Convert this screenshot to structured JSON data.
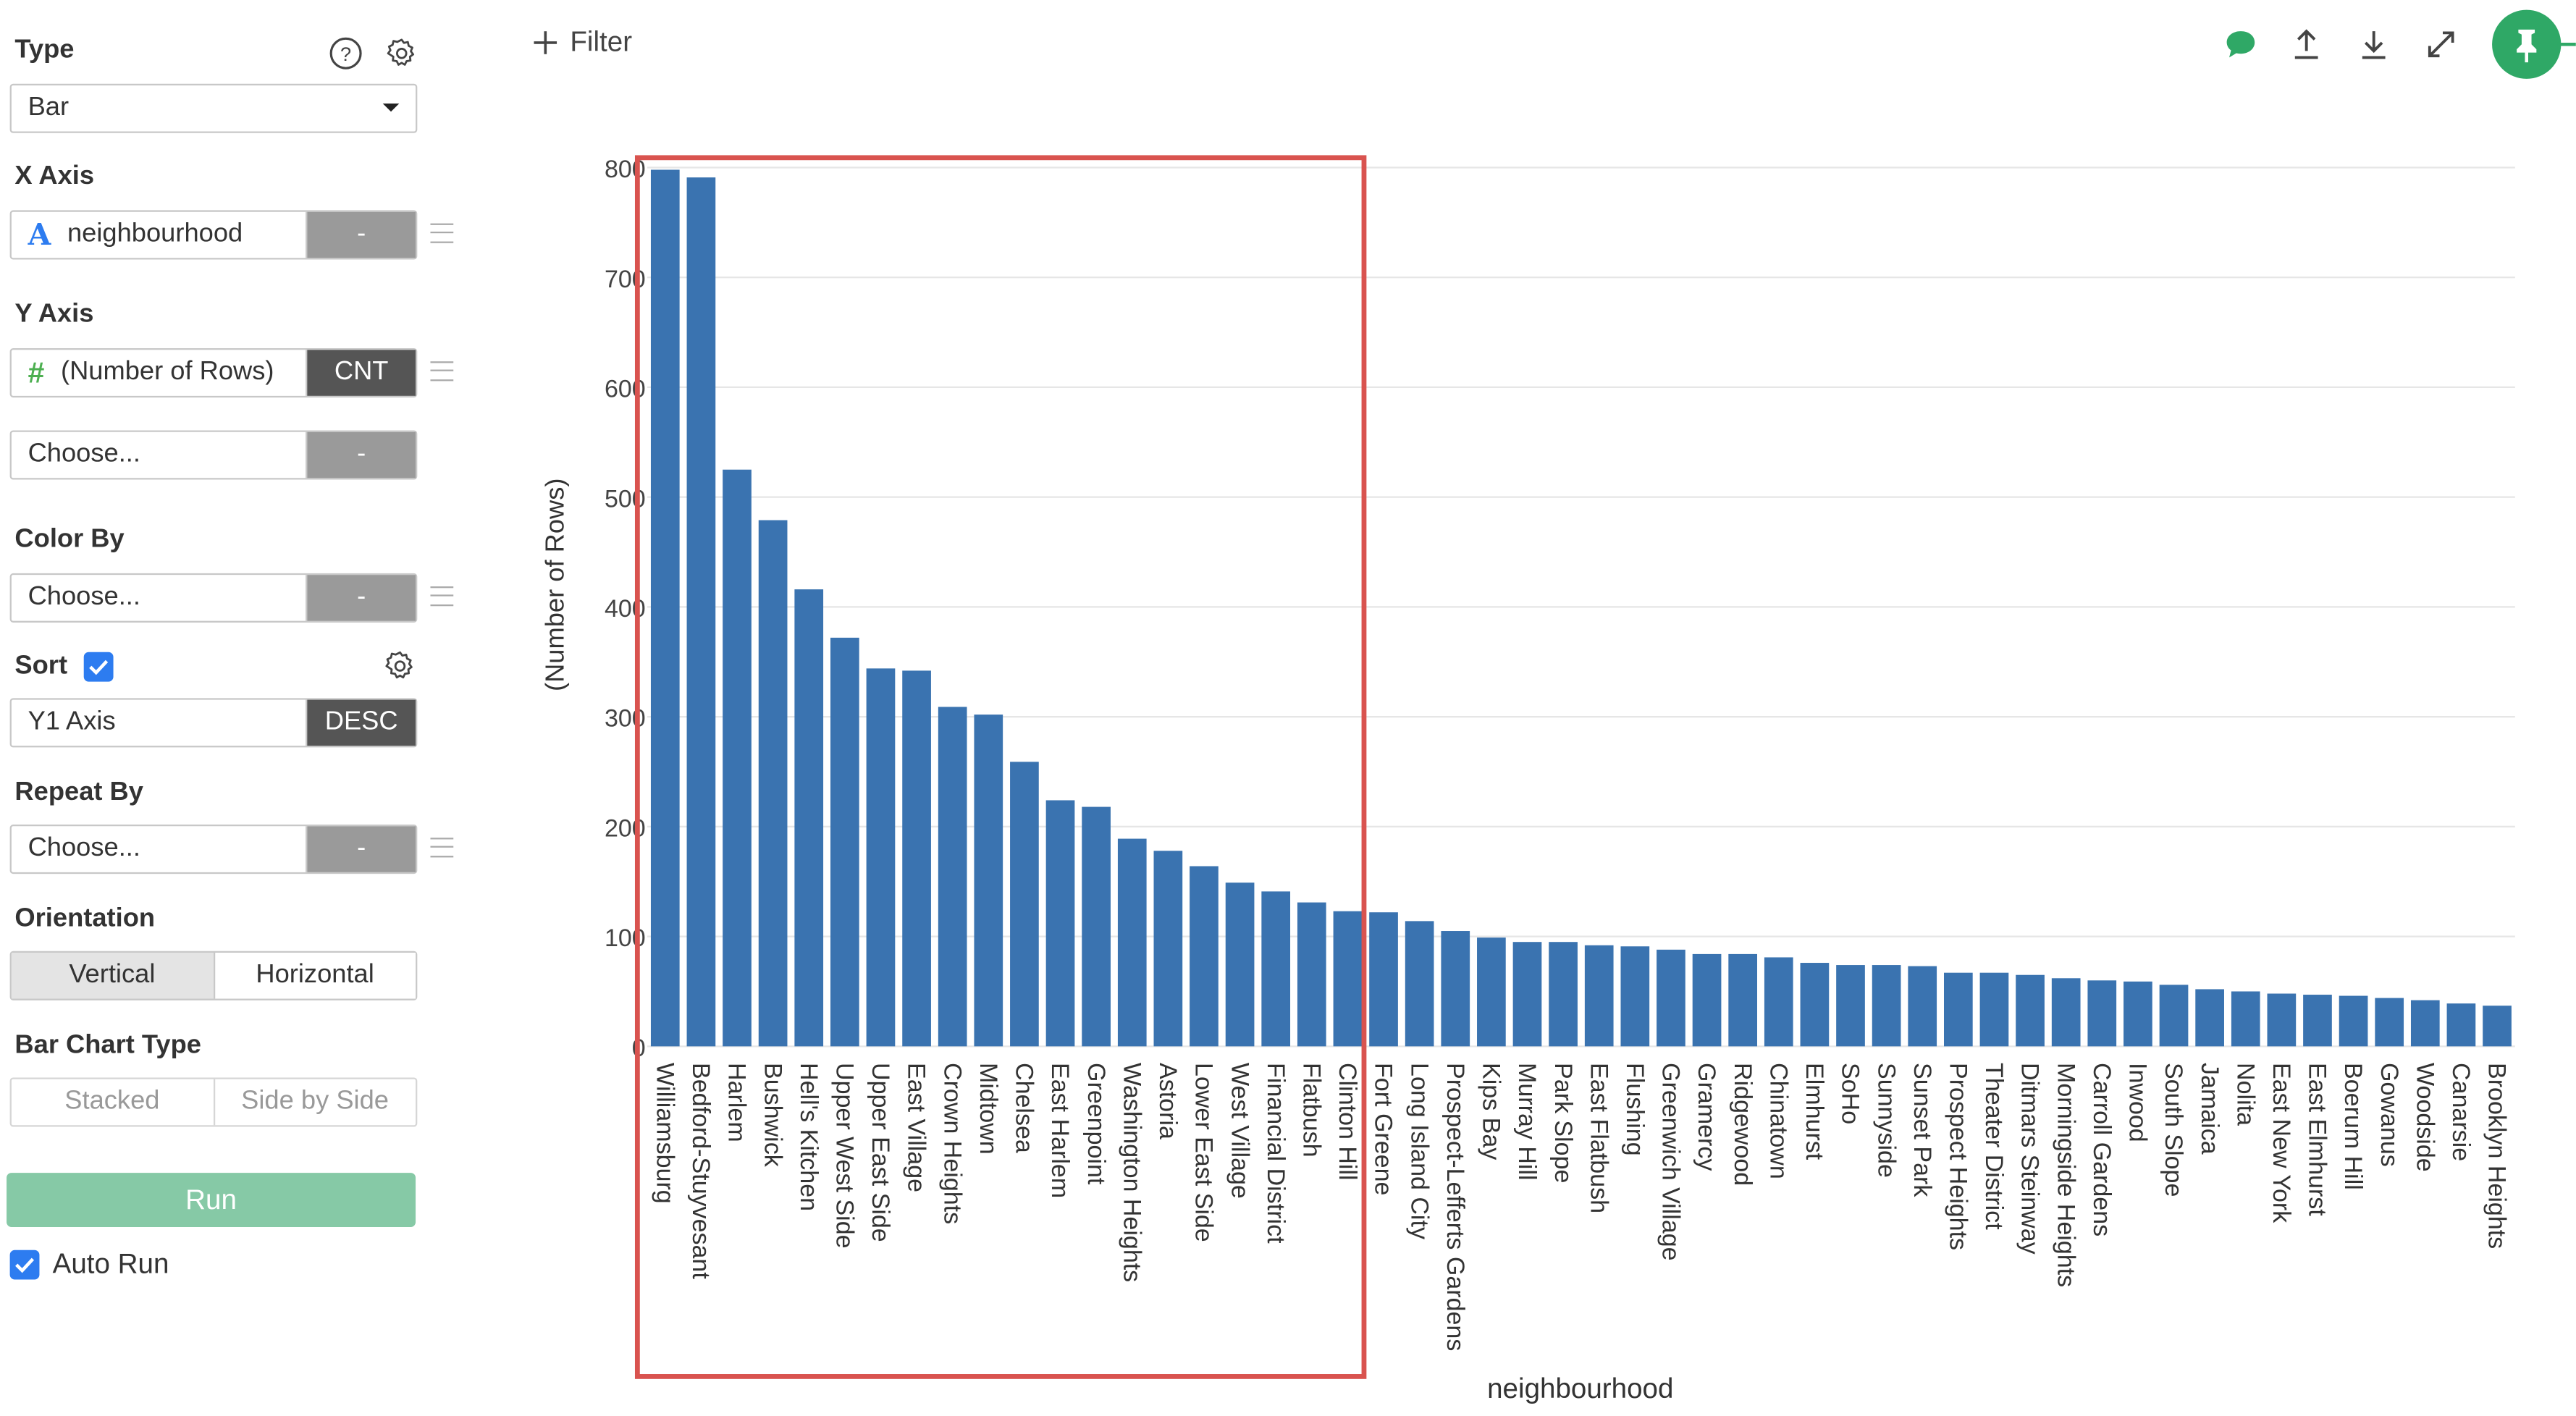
{
  "sidebar": {
    "type_label": "Type",
    "type_value": "Bar",
    "xaxis_label": "X Axis",
    "xaxis_field": "neighbourhood",
    "xaxis_agg": "-",
    "yaxis_label": "Y Axis",
    "yaxis_field": "(Number of Rows)",
    "yaxis_agg": "CNT",
    "yaxis2_field": "Choose...",
    "yaxis2_agg": "-",
    "colorby_label": "Color By",
    "colorby_field": "Choose...",
    "colorby_agg": "-",
    "sort_label": "Sort",
    "sort_field": "Y1 Axis",
    "sort_order": "DESC",
    "repeatby_label": "Repeat By",
    "repeatby_field": "Choose...",
    "repeatby_agg": "-",
    "orientation_label": "Orientation",
    "orientation_options": [
      "Vertical",
      "Horizontal"
    ],
    "barcharttype_label": "Bar Chart Type",
    "barcharttype_options": [
      "Stacked",
      "Side by Side"
    ],
    "run_label": "Run",
    "autorun_label": "Auto Run"
  },
  "toolbar": {
    "filter_label": "Filter"
  },
  "colors": {
    "bar": "#3a73b0",
    "run": "#86c9a6",
    "pin": "#2fa866",
    "comment": "#2fa866",
    "highlight": "#d9534f",
    "checkbox": "#2d7cf0"
  },
  "chart_data": {
    "type": "bar",
    "xlabel": "neighbourhood",
    "ylabel": "(Number of Rows)",
    "ylim": [
      0,
      800
    ],
    "yticks": [
      0,
      100,
      200,
      300,
      400,
      500,
      600,
      700,
      800
    ],
    "grid": true,
    "categories": [
      "Williamsburg",
      "Bedford-Stuyvesant",
      "Harlem",
      "Bushwick",
      "Hell's Kitchen",
      "Upper West Side",
      "Upper East Side",
      "East Village",
      "Crown Heights",
      "Midtown",
      "Chelsea",
      "East Harlem",
      "Greenpoint",
      "Washington Heights",
      "Astoria",
      "Lower East Side",
      "West Village",
      "Financial District",
      "Flatbush",
      "Clinton Hill",
      "Fort Greene",
      "Long Island City",
      "Prospect-Lefferts Gardens",
      "Kips Bay",
      "Murray Hill",
      "Park Slope",
      "East Flatbush",
      "Flushing",
      "Greenwich Village",
      "Gramercy",
      "Ridgewood",
      "Chinatown",
      "Elmhurst",
      "SoHo",
      "Sunnyside",
      "Sunset Park",
      "Prospect Heights",
      "Theater District",
      "Ditmars Steinway",
      "Morningside Heights",
      "Carroll Gardens",
      "Inwood",
      "South Slope",
      "Jamaica",
      "Nolita",
      "East New York",
      "East Elmhurst",
      "Boerum Hill",
      "Gowanus",
      "Woodside",
      "Canarsie",
      "Brooklyn Heights"
    ],
    "values": [
      798,
      791,
      525,
      479,
      416,
      372,
      344,
      342,
      309,
      302,
      259,
      224,
      218,
      189,
      178,
      164,
      149,
      141,
      131,
      123,
      122,
      114,
      105,
      99,
      95,
      95,
      92,
      91,
      88,
      84,
      84,
      81,
      76,
      74,
      74,
      73,
      67,
      67,
      65,
      62,
      60,
      59,
      56,
      52,
      50,
      48,
      47,
      46,
      44,
      42,
      39,
      37
    ],
    "highlighted_categories": [
      "Williamsburg",
      "Bedford-Stuyvesant",
      "Harlem",
      "Bushwick",
      "Hell's Kitchen",
      "Upper West Side",
      "Upper East Side",
      "East Village",
      "Crown Heights",
      "Midtown",
      "Chelsea",
      "East Harlem",
      "Greenpoint",
      "Washington Heights",
      "Astoria",
      "Lower East Side",
      "West Village",
      "Financial District",
      "Flatbush",
      "Clinton Hill"
    ]
  }
}
